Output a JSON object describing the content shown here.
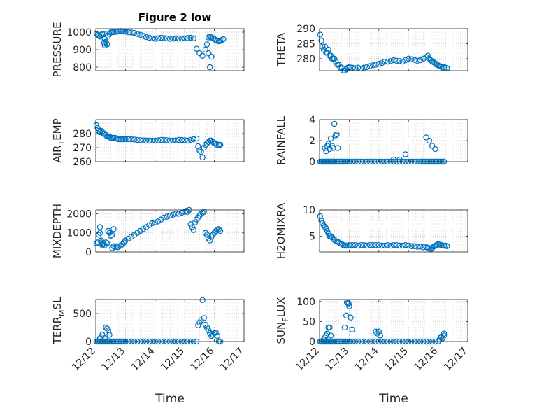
{
  "figure": {
    "title": "Figure 2 low",
    "marker_color": "#0072BD"
  },
  "chart_data": [
    {
      "id": "pressure",
      "type": "scatter",
      "ylabel": "PRESSURE",
      "ylabel_sub": "",
      "xlim": [
        0,
        5
      ],
      "ylim": [
        780,
        1020
      ],
      "yticks": [
        800,
        900,
        1000
      ],
      "xticks": [
        0,
        1,
        2,
        3,
        4,
        5
      ],
      "xticklabels": [],
      "xlabel": "",
      "x": [
        0.02,
        0.06,
        0.1,
        0.14,
        0.18,
        0.22,
        0.26,
        0.3,
        0.34,
        0.38,
        0.42,
        0.46,
        0.5,
        0.55,
        0.6,
        0.65,
        0.7,
        0.75,
        0.8,
        0.85,
        0.9,
        0.95,
        1.0,
        1.1,
        1.2,
        1.3,
        1.4,
        1.5,
        1.6,
        1.7,
        1.8,
        1.9,
        2.0,
        2.1,
        2.2,
        2.3,
        2.4,
        2.5,
        2.6,
        2.7,
        2.8,
        2.9,
        3.0,
        3.1,
        3.2,
        3.3,
        3.4,
        3.5,
        3.6,
        3.7,
        3.75,
        3.8,
        3.85,
        3.9,
        3.95,
        4.0,
        4.05,
        4.1,
        4.15,
        4.2,
        4.25,
        4.3,
        0.28,
        0.32,
        0.3,
        3.85,
        3.9,
        3.8
      ],
      "y": [
        990,
        985,
        980,
        975,
        985,
        990,
        992,
        960,
        945,
        930,
        980,
        990,
        998,
        1000,
        1000,
        1002,
        1003,
        1004,
        1005,
        1006,
        1005,
        1004,
        1003,
        1000,
        998,
        995,
        990,
        985,
        978,
        972,
        968,
        964,
        962,
        965,
        968,
        966,
        964,
        962,
        963,
        965,
        964,
        963,
        965,
        966,
        968,
        965,
        905,
        880,
        865,
        900,
        930,
        970,
        975,
        970,
        965,
        960,
        955,
        950,
        948,
        950,
        955,
        960,
        940,
        935,
        925,
        800,
        860,
        880
      ]
    },
    {
      "id": "theta",
      "type": "scatter",
      "ylabel": "THETA",
      "ylabel_sub": "",
      "xlim": [
        0,
        5
      ],
      "ylim": [
        276,
        290
      ],
      "yticks": [
        280,
        285,
        290
      ],
      "xticks": [
        0,
        1,
        2,
        3,
        4,
        5
      ],
      "xticklabels": [],
      "xlabel": "",
      "x": [
        0.02,
        0.06,
        0.1,
        0.14,
        0.18,
        0.22,
        0.26,
        0.3,
        0.34,
        0.38,
        0.42,
        0.46,
        0.5,
        0.55,
        0.6,
        0.65,
        0.7,
        0.75,
        0.8,
        0.85,
        0.9,
        0.95,
        1.0,
        1.1,
        1.2,
        1.3,
        1.4,
        1.5,
        1.6,
        1.7,
        1.8,
        1.9,
        2.0,
        2.1,
        2.2,
        2.3,
        2.4,
        2.5,
        2.6,
        2.7,
        2.8,
        2.9,
        3.0,
        3.1,
        3.2,
        3.3,
        3.4,
        3.5,
        3.6,
        3.65,
        3.7,
        3.75,
        3.8,
        3.85,
        3.9,
        3.95,
        4.0,
        4.05,
        4.1,
        4.15,
        4.2,
        4.25,
        4.3
      ],
      "y": [
        288,
        286,
        284,
        283,
        284,
        282,
        282,
        283,
        281,
        281,
        280,
        280,
        280,
        279,
        278,
        278,
        277,
        277,
        276,
        276,
        276.5,
        277,
        277.2,
        277,
        276.8,
        277,
        276.7,
        277,
        277.2,
        277.5,
        277.8,
        278,
        278.3,
        278.5,
        279,
        279,
        279.2,
        279.5,
        279.3,
        279.2,
        279,
        279.5,
        280,
        279.8,
        279.6,
        279.3,
        279.5,
        280,
        280.5,
        281,
        280,
        279.5,
        279,
        278.8,
        278.5,
        278,
        277.8,
        277.5,
        277.3,
        277,
        277.2,
        277,
        276.8
      ]
    },
    {
      "id": "air_temp",
      "type": "scatter",
      "ylabel": "AIR",
      "ylabel_sub": "T",
      "ylabel_tail": "EMP",
      "xlim": [
        0,
        5
      ],
      "ylim": [
        260,
        290
      ],
      "yticks": [
        260,
        270,
        280
      ],
      "xticks": [
        0,
        1,
        2,
        3,
        4,
        5
      ],
      "xticklabels": [],
      "xlabel": "",
      "x": [
        0.02,
        0.06,
        0.1,
        0.14,
        0.18,
        0.22,
        0.26,
        0.3,
        0.34,
        0.38,
        0.42,
        0.46,
        0.5,
        0.55,
        0.6,
        0.65,
        0.7,
        0.75,
        0.8,
        0.85,
        0.9,
        0.95,
        1.0,
        1.1,
        1.2,
        1.3,
        1.4,
        1.5,
        1.6,
        1.7,
        1.8,
        1.9,
        2.0,
        2.1,
        2.2,
        2.3,
        2.4,
        2.5,
        2.6,
        2.7,
        2.8,
        2.9,
        3.0,
        3.1,
        3.2,
        3.3,
        3.4,
        3.45,
        3.5,
        3.55,
        3.6,
        3.65,
        3.7,
        3.75,
        3.8,
        3.85,
        3.9,
        3.95,
        4.0,
        4.05,
        4.1,
        4.15,
        4.2
      ],
      "y": [
        286,
        284,
        282,
        281,
        282,
        281,
        280,
        280,
        279,
        278,
        278,
        278,
        277,
        277,
        277,
        277,
        276.5,
        276,
        276,
        276,
        276,
        276,
        276,
        276,
        276,
        275.8,
        275.5,
        275.3,
        275.2,
        275,
        275,
        275,
        275,
        275.2,
        275.5,
        275.5,
        275.3,
        275,
        275,
        275.2,
        275.5,
        275.5,
        275.3,
        275,
        275.5,
        276,
        276.5,
        271,
        268,
        267,
        263,
        270,
        272,
        273,
        274,
        275,
        275,
        274,
        273,
        273,
        272,
        272,
        272
      ]
    },
    {
      "id": "rainfall",
      "type": "scatter",
      "ylabel": "RAINFALL",
      "ylabel_sub": "",
      "xlim": [
        0,
        5
      ],
      "ylim": [
        0,
        4
      ],
      "yticks": [
        0,
        2,
        4
      ],
      "xticks": [
        0,
        1,
        2,
        3,
        4,
        5
      ],
      "xticklabels": [],
      "xlabel": "",
      "x": [
        0.02,
        0.06,
        0.1,
        0.14,
        0.18,
        0.22,
        0.26,
        0.3,
        0.34,
        0.38,
        0.42,
        0.46,
        0.5,
        0.55,
        0.6,
        0.65,
        0.7,
        0.75,
        0.8,
        0.85,
        0.9,
        0.95,
        1.0,
        1.1,
        1.2,
        1.3,
        1.4,
        1.5,
        1.6,
        1.7,
        1.8,
        1.9,
        2.0,
        2.1,
        2.2,
        2.3,
        2.4,
        2.5,
        2.6,
        2.7,
        2.8,
        2.9,
        3.0,
        3.1,
        3.2,
        3.3,
        3.4,
        3.45,
        3.5,
        3.55,
        3.6,
        3.65,
        3.7,
        3.75,
        3.8,
        3.85,
        3.9,
        3.95,
        4.0,
        4.05,
        4.1,
        4.15,
        4.2,
        0.18,
        0.22,
        0.26,
        0.3,
        0.34,
        0.38,
        0.42,
        0.46,
        0.5,
        0.54,
        0.58,
        0.62,
        2.5,
        2.7,
        2.9,
        3.6,
        3.7,
        3.8,
        3.9
      ],
      "y": [
        0,
        0,
        0,
        0,
        0,
        0,
        0,
        0,
        0,
        0,
        0,
        0,
        0,
        0,
        0,
        0,
        0,
        0,
        0,
        0,
        0,
        0,
        0,
        0,
        0,
        0,
        0,
        0,
        0,
        0,
        0,
        0,
        0,
        0,
        0,
        0,
        0,
        0,
        0,
        0,
        0,
        0,
        0,
        0,
        0,
        0,
        0,
        0,
        0,
        0,
        0,
        0,
        0,
        0,
        0,
        0,
        0,
        0,
        0,
        0,
        0,
        0,
        0,
        1.3,
        1.0,
        1.5,
        1.7,
        1.2,
        2.2,
        1.5,
        1.3,
        3.6,
        2.5,
        2.6,
        1.3,
        0.2,
        0.2,
        0.7,
        2.3,
        2.0,
        1.5,
        1.2
      ]
    },
    {
      "id": "mixdepth",
      "type": "scatter",
      "ylabel": "MIXDEPTH",
      "ylabel_sub": "",
      "xlim": [
        0,
        5
      ],
      "ylim": [
        0,
        2200
      ],
      "yticks": [
        0,
        1000,
        2000
      ],
      "xticks": [
        0,
        1,
        2,
        3,
        4,
        5
      ],
      "xticklabels": [],
      "xlabel": "",
      "x": [
        0.02,
        0.06,
        0.1,
        0.14,
        0.18,
        0.22,
        0.26,
        0.3,
        0.34,
        0.38,
        0.42,
        0.46,
        0.5,
        0.55,
        0.6,
        0.65,
        0.7,
        0.75,
        0.8,
        0.85,
        0.9,
        0.95,
        1.0,
        1.1,
        1.2,
        1.3,
        1.4,
        1.5,
        1.6,
        1.7,
        1.8,
        1.9,
        2.0,
        2.1,
        2.2,
        2.3,
        2.4,
        2.5,
        2.6,
        2.7,
        2.8,
        2.9,
        3.0,
        3.05,
        3.1,
        3.15,
        3.2,
        3.25,
        3.3,
        3.35,
        3.4,
        3.45,
        3.5,
        3.55,
        3.6,
        3.65,
        3.7,
        3.75,
        3.8,
        3.85,
        3.9,
        3.95,
        4.0,
        4.05,
        4.1,
        4.15,
        4.2,
        0.14,
        0.18,
        0.22,
        0.26,
        0.5,
        0.55,
        0.6
      ],
      "y": [
        450,
        500,
        900,
        1300,
        500,
        400,
        450,
        350,
        500,
        450,
        1100,
        1000,
        850,
        200,
        300,
        250,
        300,
        250,
        300,
        350,
        400,
        500,
        600,
        700,
        800,
        900,
        1000,
        1100,
        1200,
        1300,
        1400,
        1500,
        1550,
        1600,
        1700,
        1800,
        1850,
        1900,
        1950,
        2000,
        2000,
        2050,
        2100,
        2150,
        2100,
        2200,
        1450,
        1300,
        1150,
        1550,
        1700,
        1800,
        1900,
        2000,
        2050,
        2100,
        1000,
        900,
        700,
        600,
        800,
        900,
        1000,
        1100,
        1150,
        1200,
        1100,
        1000,
        600,
        350,
        450,
        850,
        900,
        1200
      ]
    },
    {
      "id": "h2omixra",
      "type": "scatter",
      "ylabel": "H2OMIXRA",
      "ylabel_sub": "",
      "xlim": [
        0,
        5
      ],
      "ylim": [
        2,
        10
      ],
      "yticks": [
        5,
        10
      ],
      "xticks": [
        0,
        1,
        2,
        3,
        4,
        5
      ],
      "xticklabels": [],
      "xlabel": "",
      "x": [
        0.02,
        0.06,
        0.1,
        0.14,
        0.18,
        0.22,
        0.26,
        0.3,
        0.34,
        0.38,
        0.42,
        0.46,
        0.5,
        0.55,
        0.6,
        0.65,
        0.7,
        0.75,
        0.8,
        0.85,
        0.9,
        0.95,
        1.0,
        1.1,
        1.2,
        1.3,
        1.4,
        1.5,
        1.6,
        1.7,
        1.8,
        1.9,
        2.0,
        2.1,
        2.2,
        2.3,
        2.4,
        2.5,
        2.6,
        2.7,
        2.8,
        2.9,
        3.0,
        3.1,
        3.2,
        3.3,
        3.4,
        3.5,
        3.6,
        3.65,
        3.7,
        3.75,
        3.8,
        3.85,
        3.9,
        3.95,
        4.0,
        4.05,
        4.1,
        4.15,
        4.2,
        4.25,
        4.3
      ],
      "y": [
        8.8,
        8,
        7.5,
        7,
        6.8,
        6.5,
        6,
        5.5,
        5,
        5,
        4.8,
        4.5,
        4.3,
        4,
        4,
        3.8,
        3.6,
        3.5,
        3.3,
        3.2,
        3.2,
        3.2,
        3.3,
        3.3,
        3.3,
        3.2,
        3.3,
        3.3,
        3.2,
        3.3,
        3.3,
        3.3,
        3.3,
        3.2,
        3.2,
        3.3,
        3.2,
        3.3,
        3.3,
        3.2,
        3.2,
        3.3,
        3.2,
        3.1,
        3.1,
        3,
        3,
        2.9,
        2.9,
        2.8,
        2.7,
        2.5,
        2.8,
        3,
        3.2,
        3.3,
        3.5,
        3.4,
        3.3,
        3.2,
        3.2,
        3.2,
        3.1
      ]
    },
    {
      "id": "terr_msl",
      "type": "scatter",
      "ylabel": "TERR",
      "ylabel_sub": "M",
      "ylabel_tail": "SL",
      "xlim": [
        0,
        5
      ],
      "ylim": [
        0,
        750
      ],
      "yticks": [
        0,
        500
      ],
      "xticks": [
        0,
        1,
        2,
        3,
        4,
        5
      ],
      "xticklabels": [
        "12/12",
        "12/13",
        "12/14",
        "12/15",
        "12/16",
        "12/17"
      ],
      "xlabel": "Time",
      "x": [
        0.02,
        0.06,
        0.1,
        0.14,
        0.18,
        0.22,
        0.26,
        0.3,
        0.34,
        0.38,
        0.42,
        0.46,
        0.5,
        0.55,
        0.6,
        0.65,
        0.7,
        0.75,
        0.8,
        0.85,
        0.9,
        0.95,
        1.0,
        1.1,
        1.2,
        1.3,
        1.4,
        1.5,
        1.6,
        1.7,
        1.8,
        1.9,
        2.0,
        2.1,
        2.2,
        2.3,
        2.4,
        2.5,
        2.6,
        2.7,
        2.8,
        2.9,
        3.0,
        3.1,
        3.2,
        3.3,
        3.4,
        3.45,
        3.5,
        3.55,
        3.6,
        3.65,
        3.7,
        3.75,
        3.8,
        3.85,
        3.9,
        3.95,
        4.0,
        4.05,
        4.1,
        4.15,
        4.2,
        0.14,
        0.18,
        0.22,
        0.3,
        0.34,
        0.38,
        0.42,
        0.46
      ],
      "y": [
        0,
        0,
        0,
        0,
        0,
        0,
        0,
        0,
        0,
        0,
        0,
        0,
        0,
        0,
        0,
        0,
        0,
        0,
        0,
        0,
        0,
        0,
        0,
        0,
        0,
        0,
        0,
        0,
        0,
        0,
        0,
        0,
        0,
        0,
        0,
        0,
        0,
        0,
        0,
        0,
        0,
        0,
        0,
        0,
        0,
        0,
        0,
        290,
        340,
        380,
        740,
        420,
        300,
        250,
        200,
        150,
        100,
        120,
        150,
        160,
        100,
        0,
        0,
        60,
        80,
        120,
        60,
        250,
        230,
        200,
        120
      ]
    },
    {
      "id": "sun_flux",
      "type": "scatter",
      "ylabel": "SUN",
      "ylabel_sub": "F",
      "ylabel_tail": "LUX",
      "xlim": [
        0,
        5
      ],
      "ylim": [
        0,
        105
      ],
      "yticks": [
        0,
        50,
        100
      ],
      "xticks": [
        0,
        1,
        2,
        3,
        4,
        5
      ],
      "xticklabels": [
        "12/12",
        "12/13",
        "12/14",
        "12/15",
        "12/16",
        "12/17"
      ],
      "xlabel": "Time",
      "x": [
        0.02,
        0.06,
        0.1,
        0.14,
        0.18,
        0.22,
        0.26,
        0.3,
        0.34,
        0.38,
        0.42,
        0.46,
        0.5,
        0.55,
        0.6,
        0.65,
        0.7,
        0.75,
        0.8,
        0.85,
        0.9,
        0.95,
        1.0,
        1.1,
        1.2,
        1.3,
        1.4,
        1.5,
        1.6,
        1.7,
        1.8,
        1.9,
        2.0,
        2.1,
        2.2,
        2.3,
        2.4,
        2.5,
        2.6,
        2.7,
        2.8,
        2.9,
        3.0,
        3.1,
        3.2,
        3.3,
        3.4,
        3.5,
        3.6,
        3.7,
        3.8,
        3.9,
        4.0,
        4.05,
        4.1,
        4.15,
        4.2,
        0.14,
        0.18,
        0.22,
        0.26,
        0.3,
        0.34,
        0.38,
        0.85,
        0.9,
        0.92,
        0.95,
        0.98,
        1.0,
        1.05,
        1.1,
        1.9,
        1.95,
        2.0,
        2.05,
        4.1,
        4.2
      ],
      "y": [
        0,
        0,
        0,
        0,
        0,
        0,
        0,
        0,
        0,
        0,
        0,
        0,
        0,
        0,
        0,
        0,
        0,
        0,
        0,
        0,
        0,
        0,
        0,
        0,
        0,
        0,
        0,
        0,
        0,
        0,
        0,
        0,
        0,
        0,
        0,
        0,
        0,
        0,
        0,
        0,
        0,
        0,
        0,
        0,
        0,
        0,
        0,
        0,
        0,
        0,
        0,
        0,
        0,
        5,
        10,
        8,
        15,
        5,
        10,
        15,
        20,
        35,
        35,
        15,
        35,
        65,
        98,
        96,
        95,
        88,
        60,
        30,
        25,
        20,
        25,
        15,
        12,
        20
      ]
    }
  ]
}
